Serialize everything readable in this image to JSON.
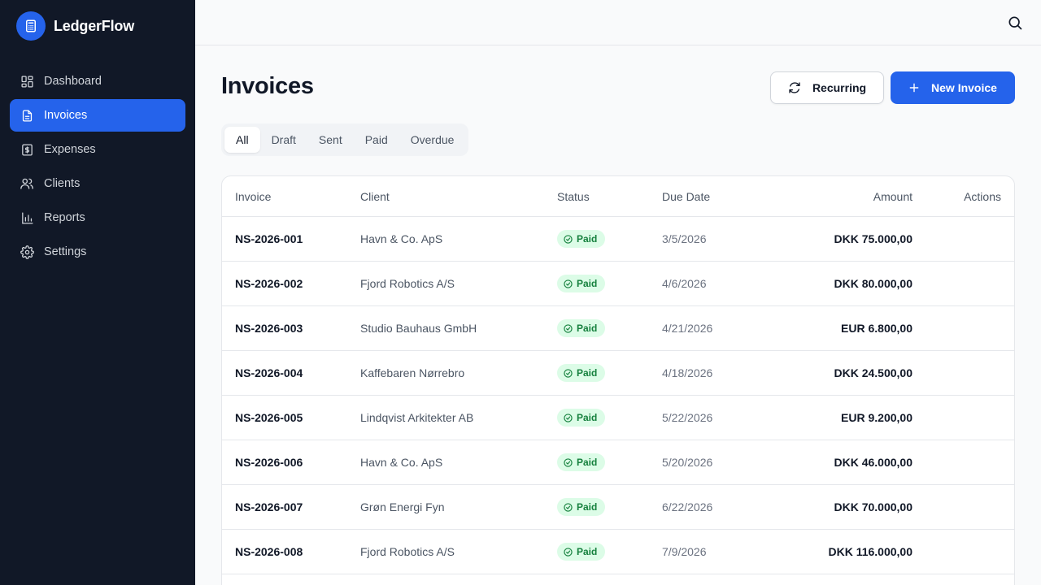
{
  "app": {
    "name": "LedgerFlow",
    "logo_icon": "calculator-icon"
  },
  "sidebar": {
    "items": [
      {
        "label": "Dashboard",
        "icon": "dashboard-grid-icon",
        "active": false
      },
      {
        "label": "Invoices",
        "icon": "document-icon",
        "active": true
      },
      {
        "label": "Expenses",
        "icon": "receipt-icon",
        "active": false
      },
      {
        "label": "Clients",
        "icon": "users-icon",
        "active": false
      },
      {
        "label": "Reports",
        "icon": "bar-chart-icon",
        "active": false
      },
      {
        "label": "Settings",
        "icon": "gear-icon",
        "active": false
      }
    ]
  },
  "topbar": {
    "search_icon": "search-icon"
  },
  "page": {
    "title": "Invoices",
    "recurring_label": "Recurring",
    "new_invoice_label": "New Invoice"
  },
  "tabs": [
    {
      "label": "All",
      "active": true
    },
    {
      "label": "Draft",
      "active": false
    },
    {
      "label": "Sent",
      "active": false
    },
    {
      "label": "Paid",
      "active": false
    },
    {
      "label": "Overdue",
      "active": false
    }
  ],
  "table": {
    "headers": {
      "invoice": "Invoice",
      "client": "Client",
      "status": "Status",
      "due_date": "Due Date",
      "amount": "Amount",
      "actions": "Actions"
    },
    "rows": [
      {
        "invoice": "NS-2026-001",
        "client": "Havn & Co. ApS",
        "status": "Paid",
        "due_date": "3/5/2026",
        "amount": "DKK 75.000,00"
      },
      {
        "invoice": "NS-2026-002",
        "client": "Fjord Robotics A/S",
        "status": "Paid",
        "due_date": "4/6/2026",
        "amount": "DKK 80.000,00"
      },
      {
        "invoice": "NS-2026-003",
        "client": "Studio Bauhaus GmbH",
        "status": "Paid",
        "due_date": "4/21/2026",
        "amount": "EUR 6.800,00"
      },
      {
        "invoice": "NS-2026-004",
        "client": "Kaffebaren Nørrebro",
        "status": "Paid",
        "due_date": "4/18/2026",
        "amount": "DKK 24.500,00"
      },
      {
        "invoice": "NS-2026-005",
        "client": "Lindqvist Arkitekter AB",
        "status": "Paid",
        "due_date": "5/22/2026",
        "amount": "EUR 9.200,00"
      },
      {
        "invoice": "NS-2026-006",
        "client": "Havn & Co. ApS",
        "status": "Paid",
        "due_date": "5/20/2026",
        "amount": "DKK 46.000,00"
      },
      {
        "invoice": "NS-2026-007",
        "client": "Grøn Energi Fyn",
        "status": "Paid",
        "due_date": "6/22/2026",
        "amount": "DKK 70.000,00"
      },
      {
        "invoice": "NS-2026-008",
        "client": "Fjord Robotics A/S",
        "status": "Paid",
        "due_date": "7/9/2026",
        "amount": "DKK 116.000,00"
      }
    ]
  },
  "colors": {
    "sidebar_bg": "#111827",
    "accent": "#2563eb",
    "paid_badge_bg": "#dcfce7",
    "paid_badge_text": "#15803d"
  }
}
